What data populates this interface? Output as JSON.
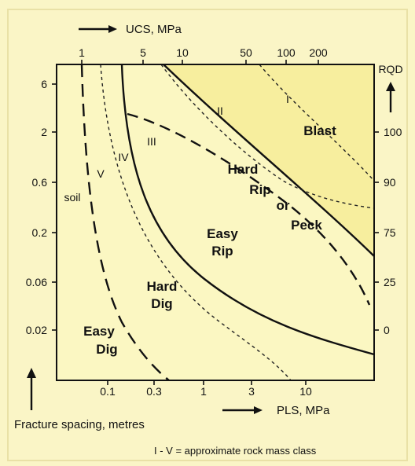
{
  "chart_data": {
    "type": "line",
    "title": "",
    "top_axis": {
      "label": "UCS,  MPa",
      "ticks": [
        "1",
        "5",
        "10",
        "50",
        "100",
        "200"
      ]
    },
    "bottom_axis": {
      "label": "PLS,  MPa",
      "ticks": [
        "0.1",
        "0.3",
        "1",
        "3",
        "10"
      ]
    },
    "left_axis": {
      "label": "Fracture spacing,  metres",
      "ticks": [
        "6",
        "2",
        "0.6",
        "0.2",
        "0.06",
        "0.02"
      ]
    },
    "right_axis": {
      "label": "RQD",
      "ticks": [
        "100",
        "90",
        "75",
        "25",
        "0"
      ]
    },
    "zones": [
      "Blast",
      "Hard",
      "Rip",
      "or",
      "Peck",
      "Easy",
      "Rip",
      "Hard",
      "Dig",
      "Easy",
      "Dig"
    ],
    "class_labels": [
      "I",
      "II",
      "III",
      "IV",
      "V",
      "soil"
    ],
    "footnote": "I - V  =  approximate rock mass class",
    "colors": {
      "panel": "#fbf7c2",
      "frame_bg": "#faf5c6",
      "blast_zone": "#f7ee9e",
      "ink": "#111111"
    }
  }
}
